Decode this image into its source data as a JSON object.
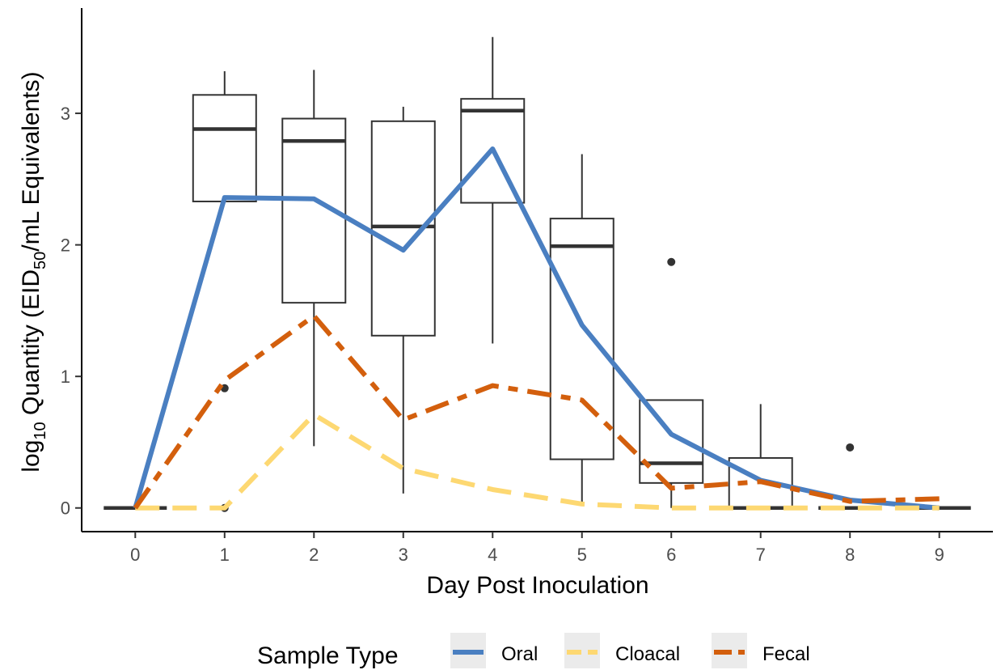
{
  "chart_data": {
    "type": "box+line",
    "xlabel": "Day Post Inoculation",
    "ylabel_parts": [
      "log",
      "10",
      " Quantity (EID",
      "50",
      "/mL Equivalents)"
    ],
    "xlim": [
      -0.6,
      9.6
    ],
    "ylim": [
      -0.18,
      3.8
    ],
    "x_ticks": [
      0,
      1,
      2,
      3,
      4,
      5,
      6,
      7,
      8,
      9
    ],
    "y_ticks": [
      0,
      1,
      2,
      3
    ],
    "grid": false,
    "legend_position": "bottom",
    "legend_title": "Sample Type",
    "boxplot": [
      {
        "x": 0,
        "q1": 0,
        "median": 0,
        "q3": 0,
        "lower": 0,
        "upper": 0,
        "outliers": []
      },
      {
        "x": 1,
        "q1": 2.33,
        "median": 2.88,
        "q3": 3.14,
        "lower": 2.33,
        "upper": 3.32,
        "outliers": [
          0.91,
          0
        ]
      },
      {
        "x": 2,
        "q1": 1.56,
        "median": 2.79,
        "q3": 2.96,
        "lower": 0.47,
        "upper": 3.33,
        "outliers": []
      },
      {
        "x": 3,
        "q1": 1.31,
        "median": 2.14,
        "q3": 2.94,
        "lower": 0.11,
        "upper": 3.05,
        "outliers": []
      },
      {
        "x": 4,
        "q1": 2.32,
        "median": 3.02,
        "q3": 3.11,
        "lower": 1.25,
        "upper": 3.58,
        "outliers": []
      },
      {
        "x": 5,
        "q1": 0.37,
        "median": 1.99,
        "q3": 2.2,
        "lower": 0.03,
        "upper": 2.69,
        "outliers": []
      },
      {
        "x": 6,
        "q1": 0.19,
        "median": 0.34,
        "q3": 0.82,
        "lower": 0,
        "upper": 0.82,
        "outliers": [
          1.87
        ]
      },
      {
        "x": 7,
        "q1": 0,
        "median": 0,
        "q3": 0.38,
        "lower": 0,
        "upper": 0.79,
        "outliers": []
      },
      {
        "x": 8,
        "q1": 0,
        "median": 0,
        "q3": 0,
        "lower": 0,
        "upper": 0,
        "outliers": [
          0.46
        ]
      },
      {
        "x": 9,
        "q1": 0,
        "median": 0,
        "q3": 0,
        "lower": 0,
        "upper": 0,
        "outliers": []
      }
    ],
    "series": [
      {
        "name": "Oral",
        "color": "#4A7FC1",
        "dash": "solid",
        "x": [
          0,
          1,
          2,
          3,
          4,
          5,
          6,
          7,
          8,
          9
        ],
        "y": [
          0,
          2.36,
          2.35,
          1.96,
          2.73,
          1.39,
          0.56,
          0.21,
          0.06,
          0
        ]
      },
      {
        "name": "Cloacal",
        "color": "#FDD872",
        "dash": "long",
        "x": [
          0,
          1,
          2,
          3,
          4,
          5,
          6,
          7,
          8,
          9
        ],
        "y": [
          0,
          0,
          0.71,
          0.3,
          0.14,
          0.03,
          0,
          0,
          0,
          0
        ]
      },
      {
        "name": "Fecal",
        "color": "#D35F0D",
        "dash": "dashdot",
        "x": [
          0,
          1,
          2,
          3,
          4,
          5,
          6,
          7,
          8,
          9
        ],
        "y": [
          0,
          0.97,
          1.46,
          0.67,
          0.93,
          0.82,
          0.15,
          0.2,
          0.05,
          0.07
        ]
      }
    ]
  }
}
